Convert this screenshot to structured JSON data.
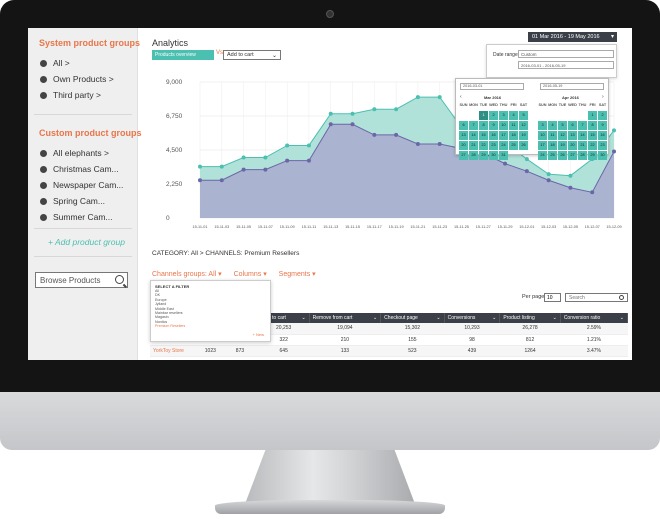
{
  "sidebar": {
    "system_heading": "System product groups",
    "system_items": [
      "All >",
      "Own Products >",
      "Third party >"
    ],
    "custom_heading": "Custom product groups",
    "custom_items": [
      "All elephants >",
      "Christmas Cam...",
      "Newspaper Cam...",
      "Spring Cam...",
      "Summer Cam..."
    ],
    "add_group": "+ Add product group",
    "browse_label": "Browse Products"
  },
  "header": {
    "title": "Analytics",
    "metric_a": "Products overview",
    "vs": "Vs",
    "metric_b": "Add to cart",
    "date_range_button": "01 Mar 2016 - 19 May 2016"
  },
  "date_panel": {
    "label": "Date range",
    "preset": "Custom",
    "range_text": "2016-03-01 - 2016-05-19",
    "start_input": "2016-03-01",
    "end_input": "2016-05-19",
    "left_month": "Mar 2016",
    "right_month": "Apr 2016",
    "days_of_week": [
      "SUN",
      "MON",
      "TUE",
      "WED",
      "THU",
      "FRI",
      "SAT"
    ],
    "left_weeks": [
      [
        "",
        "",
        "1",
        "2",
        "3",
        "4",
        "5"
      ],
      [
        "6",
        "7",
        "8",
        "9",
        "10",
        "11",
        "12"
      ],
      [
        "13",
        "14",
        "15",
        "16",
        "17",
        "18",
        "19"
      ],
      [
        "20",
        "21",
        "22",
        "23",
        "24",
        "25",
        "26"
      ],
      [
        "27",
        "28",
        "29",
        "30",
        "31",
        "",
        ""
      ]
    ],
    "right_weeks": [
      [
        "",
        "",
        "",
        "",
        "",
        "1",
        "2"
      ],
      [
        "3",
        "4",
        "5",
        "6",
        "7",
        "8",
        "9"
      ],
      [
        "10",
        "11",
        "12",
        "13",
        "14",
        "15",
        "16"
      ],
      [
        "17",
        "18",
        "19",
        "20",
        "21",
        "22",
        "23"
      ],
      [
        "24",
        "25",
        "26",
        "27",
        "28",
        "29",
        "30"
      ]
    ]
  },
  "chart_data": {
    "type": "area",
    "y_ticks": [
      "9,000",
      "6,750",
      "4,500",
      "2,250",
      "0"
    ],
    "ylim": [
      0,
      9000
    ],
    "x": [
      "15-11-01",
      "15-11-03",
      "15-11-05",
      "15-11-07",
      "15-11-09",
      "15-11-11",
      "15-11-13",
      "15-11-15",
      "15-11-17",
      "15-11-19",
      "15-11-21",
      "15-11-23",
      "15-11-25",
      "15-11-27",
      "15-11-29",
      "15-12-01",
      "15-12-03",
      "15-12-05",
      "15-12-07",
      "15-12-09"
    ],
    "series": [
      {
        "values": [
          3400,
          3400,
          4000,
          4000,
          4800,
          4800,
          6900,
          6900,
          7200,
          7200,
          8000,
          8000,
          6000,
          5800,
          5000,
          3900,
          2900,
          2800,
          3900,
          5800
        ]
      },
      {
        "values": [
          2500,
          2500,
          3200,
          3200,
          3800,
          3800,
          6200,
          6200,
          5500,
          5500,
          4900,
          4900,
          4600,
          4300,
          3600,
          3100,
          2500,
          2000,
          1700,
          4400
        ]
      }
    ],
    "colors": {
      "upper": "#a9dfd6",
      "upper_line": "#4bbfb0",
      "lower": "#aab0cf",
      "lower_line": "#6b66a8"
    }
  },
  "category_line": "CATEGORY: All >  CHANNELS:  Premium Resellers",
  "filters": {
    "channel_groups": "Channels groups: All ▾",
    "columns": "Columns ▾",
    "segments": "Segments ▾"
  },
  "filter_popup": {
    "title": "SELECT A FILTER",
    "items": [
      "All",
      "DK",
      "Europe",
      "Jylland",
      "Middle East",
      "Mainbar resellers",
      "Magasin",
      "Nordics",
      "Premium Resellers"
    ],
    "active_index": 8,
    "new_label": "+ New"
  },
  "table": {
    "per_page_label": "Per page",
    "per_page_value": "10",
    "search_placeholder": "Search",
    "headers": [
      "",
      "",
      "…age",
      "Add to cart",
      "Remove from cart",
      "Checkout page",
      "Conversions",
      "Product listing",
      "Conversion ratio"
    ],
    "rows": [
      [
        "",
        "",
        "",
        "20,253",
        "19,094",
        "15,302",
        "10,293",
        "26,278",
        "2.59%"
      ],
      [
        "",
        "485",
        "",
        "322",
        "210",
        "155",
        "98",
        "812",
        "1.21%"
      ],
      [
        "YorkToy Store",
        "1023",
        "873",
        "645",
        "133",
        "523",
        "439",
        "1264",
        "3.47%"
      ]
    ]
  }
}
